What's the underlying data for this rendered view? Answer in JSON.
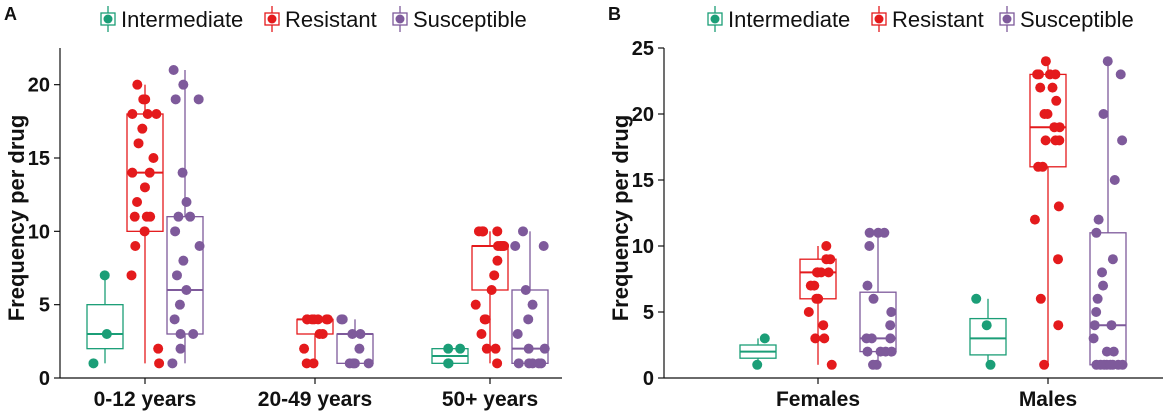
{
  "colors": {
    "Intermediate": "#1b9e77",
    "Resistant": "#e41a1c",
    "Susceptible": "#7e5a9b"
  },
  "chart_data": [
    {
      "panel": "A",
      "type": "box-jitter",
      "ylabel": "Frequency per drug",
      "ylim": [
        0,
        22.5
      ],
      "yticks": [
        0,
        5,
        10,
        15,
        20
      ],
      "legend": [
        "Intermediate",
        "Resistant",
        "Susceptible"
      ],
      "categories": [
        "0-12 years",
        "20-49 years",
        "50+ years"
      ],
      "groups": [
        {
          "category": "0-12 years",
          "boxes": [
            {
              "series": "Intermediate",
              "min": 1,
              "q1": 2,
              "median": 3,
              "q3": 5,
              "max": 7,
              "points": [
                7,
                3,
                1
              ]
            },
            {
              "series": "Resistant",
              "min": 1,
              "q1": 10,
              "median": 14,
              "q3": 18,
              "max": 20,
              "points": [
                20,
                19,
                19,
                18,
                18,
                18,
                17,
                16,
                15,
                14,
                14,
                13,
                12,
                11,
                11,
                11,
                10,
                9,
                7,
                2,
                1
              ]
            },
            {
              "series": "Susceptible",
              "min": 1,
              "q1": 3,
              "median": 6,
              "q3": 11,
              "max": 21,
              "points": [
                21,
                20,
                19,
                19,
                14,
                12,
                11,
                11,
                10,
                9,
                8,
                7,
                6,
                5,
                4,
                3,
                3,
                2,
                1
              ]
            }
          ]
        },
        {
          "category": "20-49 years",
          "boxes": [
            {
              "series": "Resistant",
              "min": 1,
              "q1": 3,
              "median": 4,
              "q3": 4,
              "max": 4,
              "points": [
                4,
                4,
                4,
                4,
                4,
                4,
                4,
                3,
                3,
                2,
                1,
                1
              ]
            },
            {
              "series": "Susceptible",
              "min": 1,
              "q1": 1,
              "median": 3,
              "q3": 3,
              "max": 4,
              "points": [
                4,
                4,
                3,
                3,
                2,
                1,
                1,
                1,
                1
              ]
            }
          ]
        },
        {
          "category": "50+ years",
          "boxes": [
            {
              "series": "Intermediate",
              "min": 1,
              "q1": 1,
              "median": 1.5,
              "q3": 2,
              "max": 2,
              "points": [
                2,
                2,
                1,
                1
              ]
            },
            {
              "series": "Resistant",
              "min": 1,
              "q1": 6,
              "median": 9,
              "q3": 9,
              "max": 10,
              "points": [
                10,
                10,
                10,
                10,
                10,
                9,
                9,
                9,
                9,
                9,
                8,
                7,
                6,
                5,
                4,
                4,
                3,
                2,
                2,
                1
              ]
            },
            {
              "series": "Susceptible",
              "min": 1,
              "q1": 1,
              "median": 2,
              "q3": 6,
              "max": 10,
              "points": [
                10,
                9,
                9,
                6,
                5,
                4,
                3,
                2,
                2,
                1,
                1,
                1,
                1,
                1
              ]
            }
          ]
        }
      ]
    },
    {
      "panel": "B",
      "type": "box-jitter",
      "ylabel": "Frequency per drug",
      "ylim": [
        0,
        25
      ],
      "yticks": [
        0,
        5,
        10,
        15,
        20,
        25
      ],
      "legend": [
        "Intermediate",
        "Resistant",
        "Susceptible"
      ],
      "categories": [
        "Females",
        "Males"
      ],
      "groups": [
        {
          "category": "Females",
          "boxes": [
            {
              "series": "Intermediate",
              "min": 1,
              "q1": 1.5,
              "median": 2,
              "q3": 2.5,
              "max": 3,
              "points": [
                3,
                1
              ]
            },
            {
              "series": "Resistant",
              "min": 1,
              "q1": 6,
              "median": 8,
              "q3": 9,
              "max": 10,
              "points": [
                10,
                9,
                9,
                8,
                8,
                8,
                8,
                8,
                7,
                7,
                6,
                6,
                5,
                4,
                3,
                3,
                1
              ]
            },
            {
              "series": "Susceptible",
              "min": 1,
              "q1": 2,
              "median": 3,
              "q3": 6.5,
              "max": 11,
              "points": [
                11,
                11,
                11,
                10,
                7,
                6,
                5,
                4,
                3,
                3,
                3,
                2,
                2,
                2,
                2,
                1,
                1
              ]
            }
          ]
        },
        {
          "category": "Males",
          "boxes": [
            {
              "series": "Intermediate",
              "min": 1,
              "q1": 1.75,
              "median": 3,
              "q3": 4.5,
              "max": 6,
              "points": [
                6,
                4,
                1
              ]
            },
            {
              "series": "Resistant",
              "min": 1,
              "q1": 16,
              "median": 19,
              "q3": 23,
              "max": 24,
              "points": [
                24,
                23,
                23,
                23,
                23,
                22,
                22,
                21,
                20,
                20,
                19,
                19,
                18,
                18,
                18,
                16,
                16,
                13,
                12,
                9,
                6,
                4,
                1
              ]
            },
            {
              "series": "Susceptible",
              "min": 1,
              "q1": 1,
              "median": 4,
              "q3": 11,
              "max": 24,
              "points": [
                24,
                23,
                20,
                18,
                15,
                12,
                11,
                9,
                8,
                7,
                6,
                5,
                4,
                4,
                3,
                2,
                2,
                1,
                1,
                1,
                1,
                1,
                1,
                1,
                1
              ]
            }
          ]
        }
      ]
    }
  ]
}
